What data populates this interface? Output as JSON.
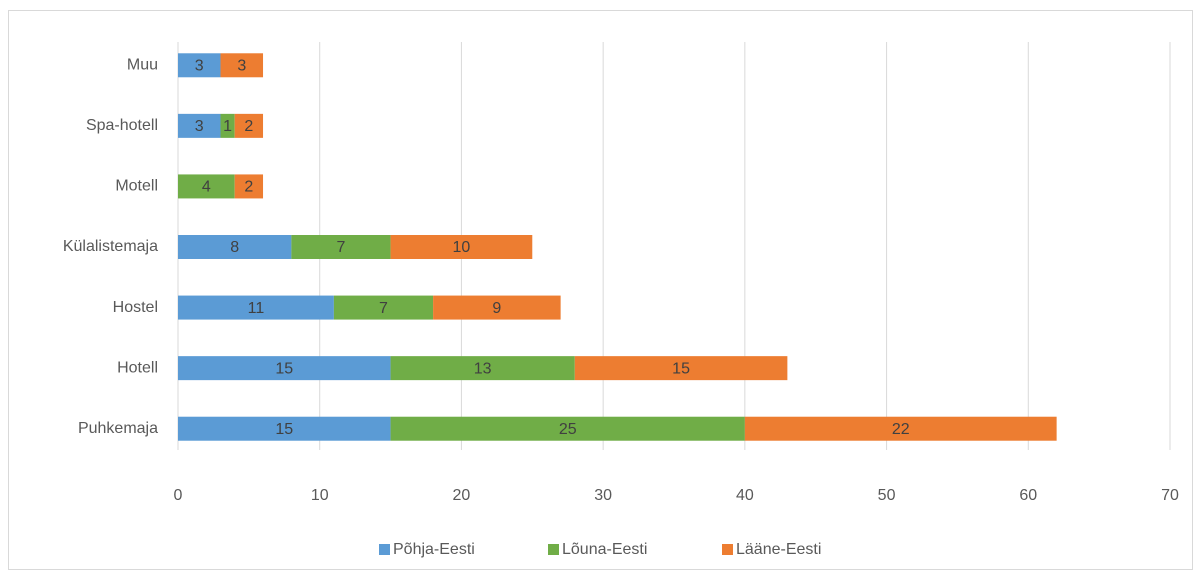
{
  "chart_data": {
    "type": "stacked-bar-horizontal",
    "categories": [
      "Muu",
      "Spa-hotell",
      "Motell",
      "Külalistemaja",
      "Hostel",
      "Hotell",
      "Puhkemaja"
    ],
    "series": [
      {
        "name": "Põhja-Eesti",
        "color": "#5b9bd5",
        "values": [
          3,
          3,
          null,
          8,
          11,
          15,
          15
        ]
      },
      {
        "name": "Lõuna-Eesti",
        "color": "#70ad47",
        "values": [
          null,
          1,
          4,
          7,
          7,
          13,
          25
        ]
      },
      {
        "name": "Lääne-Eesti",
        "color": "#ed7d31",
        "values": [
          3,
          2,
          2,
          10,
          9,
          15,
          22
        ]
      }
    ],
    "xlim": [
      0,
      70
    ],
    "xticks": [
      0,
      10,
      20,
      30,
      40,
      50,
      60,
      70
    ],
    "grid": true,
    "legend": "bottom"
  }
}
